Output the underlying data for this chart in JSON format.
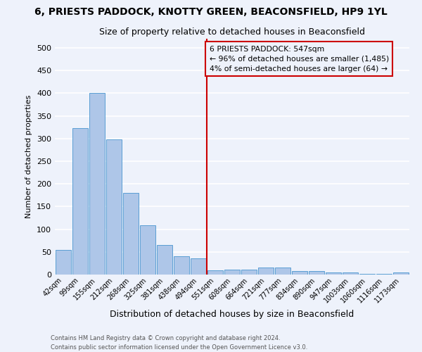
{
  "title": "6, PRIESTS PADDOCK, KNOTTY GREEN, BEACONSFIELD, HP9 1YL",
  "subtitle": "Size of property relative to detached houses in Beaconsfield",
  "xlabel": "Distribution of detached houses by size in Beaconsfield",
  "ylabel": "Number of detached properties",
  "footer_line1": "Contains HM Land Registry data © Crown copyright and database right 2024.",
  "footer_line2": "Contains public sector information licensed under the Open Government Licence v3.0.",
  "bar_labels": [
    "42sqm",
    "99sqm",
    "155sqm",
    "212sqm",
    "268sqm",
    "325sqm",
    "381sqm",
    "438sqm",
    "494sqm",
    "551sqm",
    "608sqm",
    "664sqm",
    "721sqm",
    "777sqm",
    "834sqm",
    "890sqm",
    "947sqm",
    "1003sqm",
    "1060sqm",
    "1116sqm",
    "1173sqm"
  ],
  "bar_values": [
    55,
    323,
    401,
    298,
    180,
    108,
    65,
    40,
    36,
    10,
    11,
    11,
    15,
    15,
    8,
    8,
    5,
    5,
    2,
    1,
    5
  ],
  "bar_color": "#aec6e8",
  "bar_edge_color": "#5a9fd4",
  "annotation_text": "6 PRIESTS PADDOCK: 547sqm\n← 96% of detached houses are smaller (1,485)\n4% of semi-detached houses are larger (64) →",
  "vline_color": "#cc0000",
  "annotation_box_color": "#cc0000",
  "background_color": "#eef2fb",
  "grid_color": "#ffffff",
  "ylim": [
    0,
    520
  ],
  "yticks": [
    0,
    50,
    100,
    150,
    200,
    250,
    300,
    350,
    400,
    450,
    500
  ]
}
